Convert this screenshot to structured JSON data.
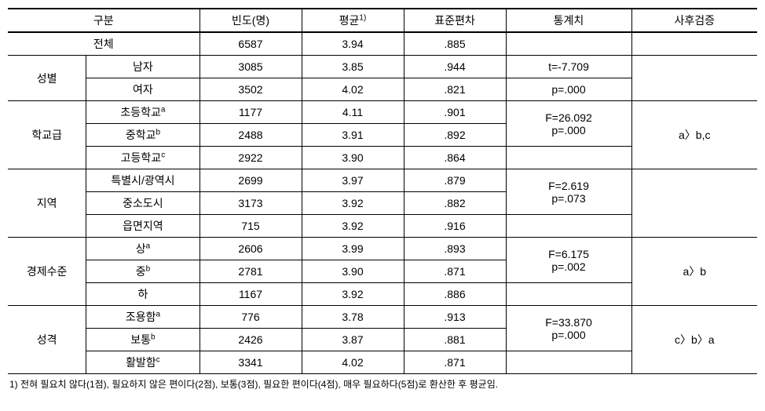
{
  "headers": {
    "category": "구분",
    "frequency": "빈도(명)",
    "mean": "평균",
    "mean_sup": "1)",
    "sd": "표준편차",
    "stat": "통계치",
    "posthoc": "사후검증"
  },
  "total": {
    "label": "전체",
    "freq": "6587",
    "mean": "3.94",
    "sd": ".885"
  },
  "gender": {
    "label": "성별",
    "rows": [
      {
        "label": "남자",
        "freq": "3085",
        "mean": "3.85",
        "sd": ".944"
      },
      {
        "label": "여자",
        "freq": "3502",
        "mean": "4.02",
        "sd": ".821"
      }
    ],
    "stat1": "t=-7.709",
    "stat2": "p=.000",
    "posthoc": ""
  },
  "school": {
    "label": "학교급",
    "rows": [
      {
        "label": "초등학교",
        "sup": "a",
        "freq": "1177",
        "mean": "4.11",
        "sd": ".901"
      },
      {
        "label": "중학교",
        "sup": "b",
        "freq": "2488",
        "mean": "3.91",
        "sd": ".892"
      },
      {
        "label": "고등학교",
        "sup": "c",
        "freq": "2922",
        "mean": "3.90",
        "sd": ".864"
      }
    ],
    "stat1": "F=26.092",
    "stat2": "p=.000",
    "posthoc": "a〉b,c"
  },
  "region": {
    "label": "지역",
    "rows": [
      {
        "label": "특별시/광역시",
        "freq": "2699",
        "mean": "3.97",
        "sd": ".879"
      },
      {
        "label": "중소도시",
        "freq": "3173",
        "mean": "3.92",
        "sd": ".882"
      },
      {
        "label": "읍면지역",
        "freq": "715",
        "mean": "3.92",
        "sd": ".916"
      }
    ],
    "stat1": "F=2.619",
    "stat2": "p=.073",
    "posthoc": ""
  },
  "economy": {
    "label": "경제수준",
    "rows": [
      {
        "label": "상",
        "sup": "a",
        "freq": "2606",
        "mean": "3.99",
        "sd": ".893"
      },
      {
        "label": "중",
        "sup": "b",
        "freq": "2781",
        "mean": "3.90",
        "sd": ".871"
      },
      {
        "label": "하",
        "freq": "1167",
        "mean": "3.92",
        "sd": ".886"
      }
    ],
    "stat1": "F=6.175",
    "stat2": "p=.002",
    "posthoc": "a〉b"
  },
  "personality": {
    "label": "성격",
    "rows": [
      {
        "label": "조용함",
        "sup": "a",
        "freq": "776",
        "mean": "3.78",
        "sd": ".913"
      },
      {
        "label": "보통",
        "sup": "b",
        "freq": "2426",
        "mean": "3.87",
        "sd": ".881"
      },
      {
        "label": "활발함",
        "sup": "c",
        "freq": "3341",
        "mean": "4.02",
        "sd": ".871"
      }
    ],
    "stat1": "F=33.870",
    "stat2": "p=.000",
    "posthoc": "c〉b〉a"
  },
  "footnote": "1) 전혀 필요치 않다(1점), 필요하지 않은 편이다(2점), 보통(3점), 필요한 편이다(4점), 매우 필요하다(5점)로 환산한 후 평균임."
}
